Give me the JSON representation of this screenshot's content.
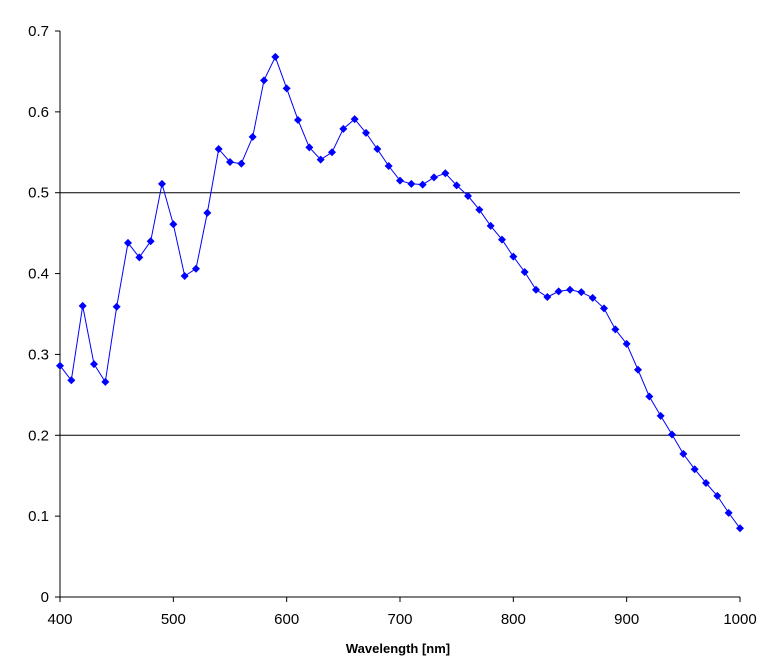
{
  "chart_data": {
    "type": "line",
    "title": "",
    "xlabel": "Wavelength [nm]",
    "ylabel": "",
    "xlim": [
      400,
      1000
    ],
    "ylim": [
      0,
      0.7
    ],
    "x_ticks": [
      400,
      500,
      600,
      700,
      800,
      900,
      1000
    ],
    "x_tick_labels": [
      "400",
      "500",
      "600",
      "700",
      "800",
      "900",
      "1000"
    ],
    "y_ticks": [
      0,
      0.1,
      0.2,
      0.3,
      0.4,
      0.5,
      0.6,
      0.7
    ],
    "y_tick_labels": [
      "0",
      "0.1",
      "0.2",
      "0.3",
      "0.4",
      "0.5",
      "0.6",
      "0.7"
    ],
    "gridlines_y": [
      0.2,
      0.5
    ],
    "legend": "none",
    "marker": "diamond",
    "colors": {
      "series": "#0000ff",
      "axis": "#000000",
      "grid": "#000000"
    },
    "series": [
      {
        "x": [
          400,
          410,
          420,
          430,
          440,
          450,
          460,
          470,
          480,
          490,
          500,
          510,
          520,
          530,
          540,
          550,
          560,
          570,
          580,
          590,
          600,
          610,
          620,
          630,
          640,
          650,
          660,
          670,
          680,
          690,
          700,
          710,
          720,
          730,
          740,
          750,
          760,
          770,
          780,
          790,
          800,
          810,
          820,
          830,
          840,
          850,
          860,
          870,
          880,
          890,
          900,
          910,
          920,
          930,
          940,
          950,
          960,
          970,
          980,
          990,
          1000
        ],
        "y": [
          0.286,
          0.268,
          0.36,
          0.288,
          0.266,
          0.359,
          0.438,
          0.42,
          0.44,
          0.511,
          0.461,
          0.397,
          0.406,
          0.475,
          0.554,
          0.538,
          0.536,
          0.569,
          0.639,
          0.668,
          0.629,
          0.59,
          0.556,
          0.541,
          0.55,
          0.579,
          0.591,
          0.574,
          0.554,
          0.533,
          0.515,
          0.511,
          0.51,
          0.519,
          0.524,
          0.509,
          0.496,
          0.479,
          0.459,
          0.442,
          0.421,
          0.402,
          0.38,
          0.371,
          0.378,
          0.38,
          0.377,
          0.37,
          0.357,
          0.331,
          0.313,
          0.281,
          0.248,
          0.224,
          0.201,
          0.177,
          0.158,
          0.141,
          0.125,
          0.104,
          0.085
        ]
      }
    ]
  }
}
